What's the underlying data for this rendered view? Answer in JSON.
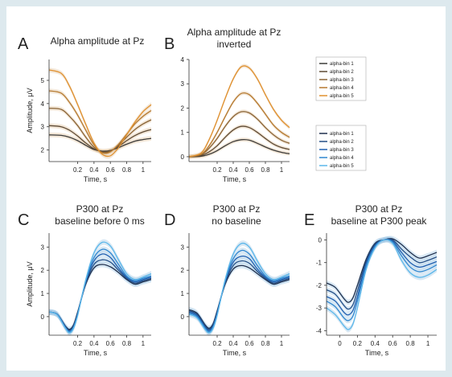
{
  "colors": {
    "orange": [
      "#3b3a38",
      "#5e4a34",
      "#8a6436",
      "#b5792f",
      "#e0902e"
    ],
    "blue": [
      "#1f2f4d",
      "#234e86",
      "#1f5fb0",
      "#2f86cf",
      "#5bb7ea"
    ],
    "band_orange": "#e5c9a8",
    "band_blue": "#a9cbe6"
  },
  "legends": {
    "alpha": [
      "alpha-bin 1",
      "alpha-bin 2",
      "alpha-bin 3",
      "alpha-bin 4",
      "alpha-bin 5"
    ],
    "p300": [
      "alpha-bin 1",
      "alpha-bin 2",
      "alpha-bin 3",
      "alpha-bin 4",
      "alpha-bin 5"
    ]
  },
  "chart_data": [
    {
      "panel": "A",
      "type": "line",
      "palette": "orange",
      "title": "Alpha amplitude at Pz",
      "title2": "",
      "xlabel": "Time, s",
      "ylabel": "Amplitude, μV",
      "xlim": [
        -0.15,
        1.1
      ],
      "ylim": [
        1.5,
        5.9
      ],
      "xticks": [
        0.2,
        0.4,
        0.6,
        0.8,
        1
      ],
      "xtick_labels": [
        "0.2",
        "0.4",
        "0.6",
        "0.8",
        "1"
      ],
      "yticks": [
        2,
        3,
        4,
        5
      ],
      "ytick_labels": [
        "2",
        "3",
        "4",
        "5"
      ],
      "band": 0.1,
      "x": [
        -0.15,
        0,
        0.1,
        0.2,
        0.3,
        0.4,
        0.5,
        0.6,
        0.7,
        0.8,
        0.9,
        1.0,
        1.1
      ],
      "series": [
        {
          "values": [
            2.65,
            2.63,
            2.55,
            2.4,
            2.2,
            2.02,
            1.95,
            1.98,
            2.1,
            2.25,
            2.38,
            2.45,
            2.5
          ]
        },
        {
          "values": [
            3.05,
            3.0,
            2.85,
            2.6,
            2.3,
            2.05,
            1.93,
            1.97,
            2.15,
            2.4,
            2.62,
            2.78,
            2.88
          ]
        },
        {
          "values": [
            3.8,
            3.75,
            3.45,
            3.05,
            2.55,
            2.12,
            1.9,
            1.95,
            2.2,
            2.55,
            2.88,
            3.12,
            3.3
          ]
        },
        {
          "values": [
            4.55,
            4.45,
            4.05,
            3.5,
            2.85,
            2.22,
            1.88,
            1.92,
            2.25,
            2.68,
            3.12,
            3.45,
            3.7
          ]
        },
        {
          "values": [
            5.45,
            5.3,
            4.75,
            3.95,
            3.1,
            2.3,
            1.82,
            1.75,
            2.1,
            2.65,
            3.2,
            3.65,
            3.95
          ]
        }
      ]
    },
    {
      "panel": "B",
      "type": "line",
      "palette": "orange",
      "title": "Alpha amplitude at Pz",
      "title2": "inverted",
      "xlabel": "Time, s",
      "ylabel": "",
      "xlim": [
        -0.15,
        1.1
      ],
      "ylim": [
        -0.2,
        4.0
      ],
      "xticks": [
        0.2,
        0.4,
        0.6,
        0.8,
        1
      ],
      "xtick_labels": [
        "0.2",
        "0.4",
        "0.6",
        "0.8",
        "1"
      ],
      "yticks": [
        0,
        1,
        2,
        3,
        4
      ],
      "ytick_labels": [
        "0",
        "1",
        "2",
        "3",
        "4"
      ],
      "band": 0.08,
      "x": [
        -0.15,
        0,
        0.1,
        0.2,
        0.3,
        0.4,
        0.5,
        0.6,
        0.7,
        0.8,
        0.9,
        1.0,
        1.1
      ],
      "series": [
        {
          "values": [
            0.0,
            0.02,
            0.1,
            0.25,
            0.45,
            0.62,
            0.7,
            0.68,
            0.55,
            0.4,
            0.27,
            0.18,
            0.12
          ]
        },
        {
          "values": [
            0.0,
            0.05,
            0.2,
            0.45,
            0.8,
            1.1,
            1.25,
            1.2,
            1.0,
            0.75,
            0.52,
            0.38,
            0.3
          ]
        },
        {
          "values": [
            0.0,
            0.08,
            0.35,
            0.75,
            1.25,
            1.65,
            1.85,
            1.8,
            1.55,
            1.2,
            0.9,
            0.68,
            0.55
          ]
        },
        {
          "values": [
            0.0,
            0.1,
            0.45,
            1.0,
            1.65,
            2.25,
            2.6,
            2.55,
            2.2,
            1.75,
            1.3,
            1.0,
            0.8
          ]
        },
        {
          "values": [
            0.0,
            0.15,
            0.7,
            1.5,
            2.4,
            3.2,
            3.7,
            3.65,
            3.2,
            2.55,
            1.95,
            1.5,
            1.2
          ]
        }
      ]
    },
    {
      "panel": "C",
      "type": "line",
      "palette": "blue",
      "title": "P300 at Pz",
      "title2": "baseline before 0 ms",
      "xlabel": "Time, s",
      "ylabel": "Amplitude, μV",
      "xlim": [
        -0.15,
        1.1
      ],
      "ylim": [
        -0.8,
        3.6
      ],
      "xticks": [
        0.2,
        0.4,
        0.6,
        0.8,
        1
      ],
      "xtick_labels": [
        "0.2",
        "0.4",
        "0.6",
        "0.8",
        "1"
      ],
      "yticks": [
        0,
        1,
        2,
        3
      ],
      "ytick_labels": [
        "0",
        "1",
        "2",
        "3"
      ],
      "band": 0.12,
      "x": [
        -0.15,
        -0.05,
        0.05,
        0.1,
        0.15,
        0.2,
        0.3,
        0.4,
        0.5,
        0.6,
        0.7,
        0.8,
        0.9,
        1.0,
        1.1
      ],
      "series": [
        {
          "values": [
            0.2,
            0.1,
            -0.4,
            -0.55,
            -0.35,
            0.2,
            1.4,
            2.1,
            2.25,
            2.15,
            1.9,
            1.6,
            1.4,
            1.5,
            1.6
          ]
        },
        {
          "values": [
            0.2,
            0.1,
            -0.42,
            -0.6,
            -0.4,
            0.15,
            1.45,
            2.25,
            2.45,
            2.35,
            2.0,
            1.65,
            1.45,
            1.55,
            1.65
          ]
        },
        {
          "values": [
            0.2,
            0.1,
            -0.45,
            -0.62,
            -0.42,
            0.12,
            1.5,
            2.4,
            2.7,
            2.55,
            2.1,
            1.7,
            1.5,
            1.6,
            1.7
          ]
        },
        {
          "values": [
            0.2,
            0.08,
            -0.48,
            -0.65,
            -0.45,
            0.1,
            1.55,
            2.55,
            2.9,
            2.75,
            2.25,
            1.75,
            1.55,
            1.65,
            1.75
          ]
        },
        {
          "values": [
            0.2,
            0.08,
            -0.5,
            -0.7,
            -0.5,
            0.05,
            1.6,
            2.75,
            3.2,
            3.05,
            2.45,
            1.85,
            1.6,
            1.7,
            1.85
          ]
        }
      ]
    },
    {
      "panel": "D",
      "type": "line",
      "palette": "blue",
      "title": "P300 at Pz",
      "title2": "no baseline",
      "xlabel": "Time, s",
      "ylabel": "",
      "xlim": [
        -0.15,
        1.1
      ],
      "ylim": [
        -0.8,
        3.6
      ],
      "xticks": [
        0.2,
        0.4,
        0.6,
        0.8,
        1
      ],
      "xtick_labels": [
        "0.2",
        "0.4",
        "0.6",
        "0.8",
        "1"
      ],
      "yticks": [
        0,
        1,
        2,
        3
      ],
      "ytick_labels": [
        "0",
        "1",
        "2",
        "3"
      ],
      "band": 0.12,
      "x": [
        -0.15,
        -0.05,
        0.05,
        0.1,
        0.15,
        0.2,
        0.3,
        0.4,
        0.5,
        0.6,
        0.7,
        0.8,
        0.9,
        1.0,
        1.1
      ],
      "series": [
        {
          "values": [
            0.3,
            0.15,
            -0.35,
            -0.5,
            -0.3,
            0.25,
            1.4,
            2.05,
            2.2,
            2.1,
            1.85,
            1.6,
            1.4,
            1.5,
            1.6
          ]
        },
        {
          "values": [
            0.25,
            0.1,
            -0.4,
            -0.55,
            -0.35,
            0.2,
            1.45,
            2.2,
            2.4,
            2.3,
            1.95,
            1.65,
            1.45,
            1.55,
            1.65
          ]
        },
        {
          "values": [
            0.2,
            0.05,
            -0.45,
            -0.6,
            -0.4,
            0.15,
            1.5,
            2.35,
            2.6,
            2.5,
            2.05,
            1.7,
            1.5,
            1.6,
            1.7
          ]
        },
        {
          "values": [
            0.15,
            0.0,
            -0.5,
            -0.65,
            -0.45,
            0.1,
            1.55,
            2.5,
            2.85,
            2.7,
            2.2,
            1.75,
            1.55,
            1.65,
            1.75
          ]
        },
        {
          "values": [
            0.1,
            -0.05,
            -0.55,
            -0.7,
            -0.5,
            0.05,
            1.6,
            2.7,
            3.15,
            3.0,
            2.4,
            1.85,
            1.6,
            1.7,
            1.85
          ]
        }
      ]
    },
    {
      "panel": "E",
      "type": "line",
      "palette": "blue",
      "title": "P300 at Pz",
      "title2": "baseline at P300 peak",
      "xlabel": "Time, s",
      "ylabel": "",
      "xlim": [
        -0.15,
        1.1
      ],
      "ylim": [
        -4.2,
        0.3
      ],
      "xticks": [
        0,
        0.2,
        0.4,
        0.6,
        0.8,
        1
      ],
      "xtick_labels": [
        "0",
        "0.2",
        "0.4",
        "0.6",
        "0.8",
        "1"
      ],
      "yticks": [
        -4,
        -3,
        -2,
        -1,
        0
      ],
      "ytick_labels": [
        "-4",
        "-3",
        "-2",
        "-1",
        "0"
      ],
      "band": 0.12,
      "x": [
        -0.15,
        -0.05,
        0.05,
        0.1,
        0.15,
        0.2,
        0.3,
        0.4,
        0.5,
        0.6,
        0.7,
        0.8,
        0.9,
        1.0,
        1.1
      ],
      "series": [
        {
          "values": [
            -1.9,
            -2.1,
            -2.6,
            -2.75,
            -2.55,
            -2.0,
            -0.85,
            -0.15,
            0.0,
            0.05,
            -0.2,
            -0.55,
            -0.8,
            -0.7,
            -0.55
          ]
        },
        {
          "values": [
            -2.2,
            -2.4,
            -2.9,
            -3.05,
            -2.85,
            -2.25,
            -0.95,
            -0.2,
            0.0,
            0.0,
            -0.4,
            -0.75,
            -1.0,
            -0.9,
            -0.75
          ]
        },
        {
          "values": [
            -2.5,
            -2.7,
            -3.2,
            -3.3,
            -3.1,
            -2.5,
            -1.05,
            -0.25,
            0.0,
            -0.05,
            -0.55,
            -1.0,
            -1.2,
            -1.1,
            -0.95
          ]
        },
        {
          "values": [
            -2.7,
            -2.95,
            -3.45,
            -3.55,
            -3.35,
            -2.7,
            -1.15,
            -0.3,
            0.0,
            -0.1,
            -0.7,
            -1.2,
            -1.4,
            -1.3,
            -1.1
          ]
        },
        {
          "values": [
            -3.0,
            -3.3,
            -3.8,
            -3.95,
            -3.7,
            -3.0,
            -1.3,
            -0.35,
            0.0,
            -0.15,
            -0.9,
            -1.45,
            -1.65,
            -1.55,
            -1.3
          ]
        }
      ]
    }
  ]
}
